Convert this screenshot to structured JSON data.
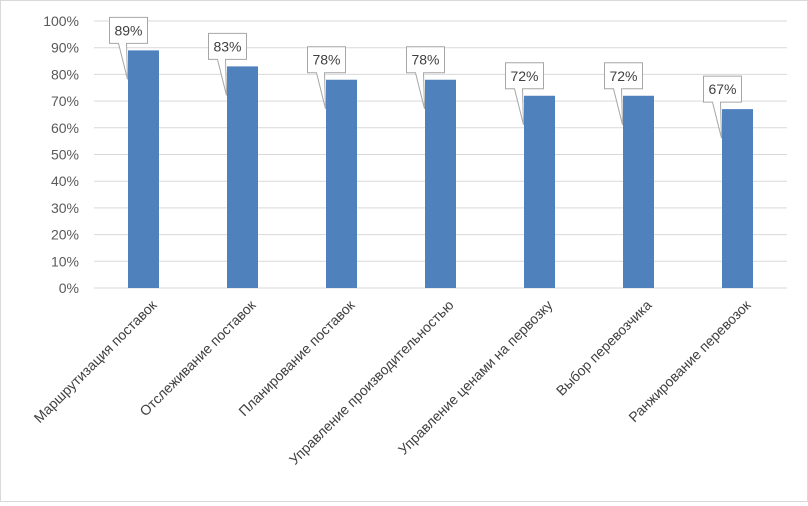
{
  "chart_data": {
    "type": "bar",
    "title": "",
    "xlabel": "",
    "ylabel": "",
    "categories": [
      "Маршрутизация поставок",
      "Отслеживание поставок",
      "Планирование поставок",
      "Управление производительностью",
      "Управление ценами на первозку",
      "Выбор перевозчика",
      "Ранжирование перевозок"
    ],
    "values": [
      89,
      83,
      78,
      78,
      72,
      72,
      67
    ],
    "value_labels": [
      "89%",
      "83%",
      "78%",
      "78%",
      "72%",
      "72%",
      "67%"
    ],
    "ylim": [
      0,
      100
    ],
    "y_ticks": [
      0,
      10,
      20,
      30,
      40,
      50,
      60,
      70,
      80,
      90,
      100
    ],
    "y_tick_labels": [
      "0%",
      "10%",
      "20%",
      "30%",
      "40%",
      "50%",
      "60%",
      "70%",
      "80%",
      "90%",
      "100%"
    ],
    "grid": true,
    "legend": "none",
    "colors": {
      "bar": "#4f81bd",
      "grid": "#d9d9d9",
      "callout_border": "#a6a6a6"
    }
  }
}
